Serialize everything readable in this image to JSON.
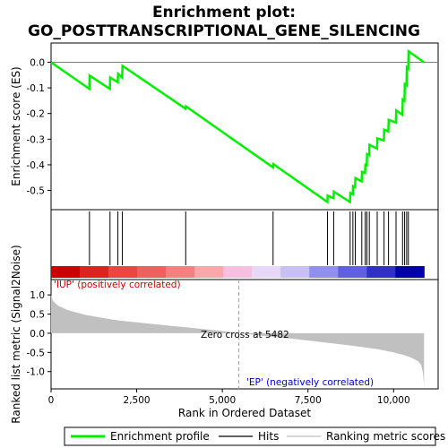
{
  "chart_data": {
    "type": "line",
    "title_line1": "Enrichment plot:",
    "title_line2": "GO_POSTTRANSCRIPTIONAL_GENE_SILENCING",
    "top_panel": {
      "ylabel": "Enrichment score (ES)",
      "ylim": [
        -0.575,
        0.075
      ],
      "yticks": [
        0.0,
        -0.1,
        -0.2,
        -0.3,
        -0.4,
        -0.5
      ],
      "ytick_labels": [
        "0.0",
        "-0.1",
        "-0.2",
        "-0.3",
        "-0.4",
        "-0.5"
      ],
      "series": [
        {
          "name": "Enrichment profile",
          "color": "#00ee00",
          "x": [
            0,
            1116,
            1126,
            1716,
            1726,
            1946,
            1956,
            2076,
            2086,
            3926,
            3936,
            6476,
            6486,
            8066,
            8076,
            8246,
            8256,
            8726,
            8736,
            8806,
            8816,
            8876,
            8886,
            9066,
            9076,
            9166,
            9176,
            9216,
            9226,
            9286,
            9296,
            9516,
            9526,
            9716,
            9726,
            9846,
            9856,
            10066,
            10076,
            10256,
            10266,
            10316,
            10326,
            10376,
            10386,
            10426,
            10436,
            10890
          ],
          "y": [
            0.0,
            -0.104,
            -0.052,
            -0.104,
            -0.06,
            -0.078,
            -0.045,
            -0.06,
            -0.014,
            -0.181,
            -0.172,
            -0.41,
            -0.397,
            -0.545,
            -0.52,
            -0.53,
            -0.505,
            -0.545,
            -0.51,
            -0.515,
            -0.483,
            -0.487,
            -0.452,
            -0.465,
            -0.428,
            -0.432,
            -0.4,
            -0.402,
            -0.358,
            -0.362,
            -0.322,
            -0.337,
            -0.297,
            -0.305,
            -0.263,
            -0.27,
            -0.225,
            -0.235,
            -0.188,
            -0.205,
            -0.145,
            -0.15,
            -0.085,
            -0.09,
            -0.02,
            -0.025,
            0.042,
            0.0
          ]
        }
      ]
    },
    "hits": {
      "name": "Hits",
      "positions": [
        1121,
        1721,
        1951,
        2081,
        3931,
        6481,
        8071,
        8251,
        8731,
        8811,
        8881,
        9071,
        9171,
        9221,
        9291,
        9521,
        9721,
        9851,
        10071,
        10261,
        10321,
        10381,
        10431
      ]
    },
    "heat_bar": {
      "colors": [
        "#cc0000",
        "#dd2222",
        "#ee4444",
        "#f06060",
        "#f48080",
        "#f8a8a8",
        "#f8c0e0",
        "#e8d8f8",
        "#c8c0f4",
        "#9090ec",
        "#6060e0",
        "#3030c8",
        "#0000a8"
      ]
    },
    "bottom_panel": {
      "ylabel": "Ranked list metric (Signal2Noise)",
      "ylim": [
        -1.45,
        1.4
      ],
      "yticks": [
        1.0,
        0.5,
        0.0,
        -0.5,
        -1.0
      ],
      "ytick_labels": [
        "1.0",
        "0.5",
        "0.0",
        "-0.5",
        "-1.0"
      ],
      "series": [
        {
          "name": "Ranking metric scores",
          "color": "#c0c0c0",
          "x": [
            0,
            50,
            200,
            500,
            1000,
            1500,
            2000,
            3000,
            4000,
            5000,
            5482,
            6000,
            7000,
            8000,
            9000,
            9500,
            10000,
            10300,
            10500,
            10700,
            10800,
            10850,
            10890
          ],
          "y": [
            1.0,
            0.85,
            0.72,
            0.6,
            0.48,
            0.4,
            0.33,
            0.24,
            0.15,
            0.06,
            0.0,
            -0.05,
            -0.14,
            -0.24,
            -0.35,
            -0.41,
            -0.5,
            -0.57,
            -0.63,
            -0.72,
            -0.82,
            -1.0,
            -1.35
          ]
        }
      ],
      "zero_cross_label": "Zero cross at 5482",
      "zero_cross_x": 5482,
      "pos_label": "'IUP' (positively correlated)",
      "neg_label": "'EP' (negatively correlated)"
    },
    "x_axis": {
      "xlabel": "Rank in Ordered Dataset",
      "xlim": [
        0,
        11300
      ],
      "xticks": [
        0,
        2500,
        5000,
        7500,
        10000
      ],
      "xtick_labels": [
        "0",
        "2,500",
        "5,000",
        "7,500",
        "10,000"
      ],
      "n_genes": 10890
    },
    "legend": {
      "placement": "bottom",
      "items": [
        {
          "label": "Enrichment profile",
          "color": "#00ee00",
          "kind": "thick-line"
        },
        {
          "label": "Hits",
          "color": "#000000",
          "kind": "line"
        },
        {
          "label": "Ranking metric scores",
          "color": "#c0c0c0",
          "kind": "line"
        }
      ]
    }
  }
}
